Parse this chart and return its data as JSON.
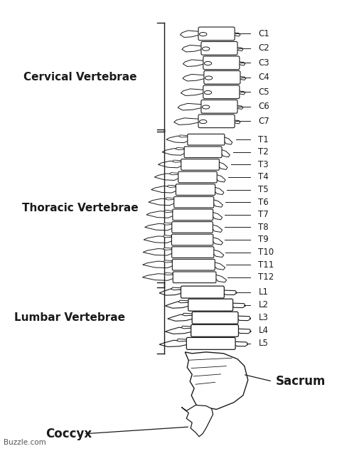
{
  "background_color": "#ffffff",
  "spine_color": "#1a1a1a",
  "cervical_label": "Cervical Vertebrae",
  "thoracic_label": "Thoracic Vertebrae",
  "lumbar_label": "Lumbar Vertebrae",
  "sacrum_label": "Sacrum",
  "coccyx_label": "Coccyx",
  "watermark": "Buzzle.com",
  "cervical_vertebrae": [
    "C1",
    "C2",
    "C3",
    "C4",
    "C5",
    "C6",
    "C7"
  ],
  "thoracic_vertebrae": [
    "T1",
    "T2",
    "T3",
    "T4",
    "T5",
    "T6",
    "T7",
    "T8",
    "T9",
    "T10",
    "T11",
    "T12"
  ],
  "lumbar_vertebrae": [
    "L1",
    "L2",
    "L3",
    "L4",
    "L5"
  ],
  "fig_w": 4.74,
  "fig_h": 6.41,
  "dpi": 100
}
